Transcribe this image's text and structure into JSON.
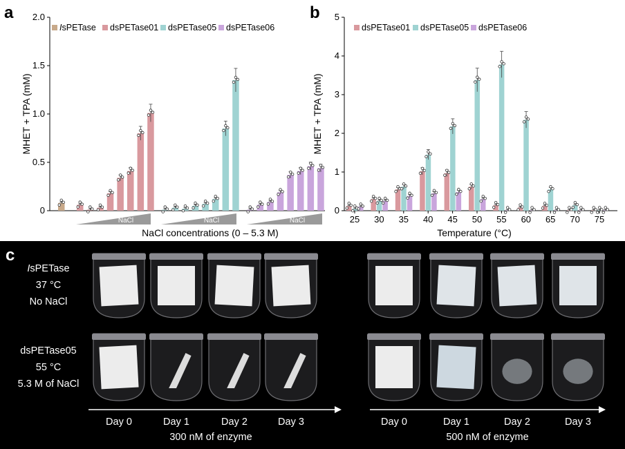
{
  "chart_data": [
    {
      "panel": "a",
      "type": "bar",
      "ylabel": "MHET + TPA (mM)",
      "xlabel": "NaCl concentrations (0 – 5.3 M)",
      "ylim": [
        0,
        2.0
      ],
      "yticks": [
        "0",
        "0.5",
        "1.0",
        "1.5",
        "2.0"
      ],
      "ytick_values": [
        0,
        0.5,
        1.0,
        1.5,
        2.0
      ],
      "legend": [
        "IsPETase",
        "dsPETase01",
        "dsPETase05",
        "dsPETase06"
      ],
      "wedge_label": "NaCl",
      "series": [
        {
          "name": "IsPETase",
          "color": "#c8a98a",
          "values": [
            0.08
          ]
        },
        {
          "name": "dsPETase01",
          "color": "#d9999e",
          "values": [
            0.06,
            0.01,
            0.03,
            0.18,
            0.34,
            0.41,
            0.8,
            1.01
          ]
        },
        {
          "name": "dsPETase05",
          "color": "#9fd3d2",
          "values": [
            0.01,
            0.03,
            0.02,
            0.05,
            0.07,
            0.12,
            0.85,
            1.35
          ]
        },
        {
          "name": "dsPETase06",
          "color": "#c9a5dc",
          "values": [
            0.01,
            0.06,
            0.09,
            0.19,
            0.37,
            0.41,
            0.46,
            0.44
          ]
        }
      ]
    },
    {
      "panel": "b",
      "type": "bar",
      "ylabel": "MHET + TPA (mM)",
      "xlabel": "Temperature (°C)",
      "ylim": [
        0,
        5
      ],
      "yticks": [
        "0",
        "1",
        "2",
        "3",
        "4",
        "5"
      ],
      "ytick_values": [
        0,
        1,
        2,
        3,
        4,
        5
      ],
      "categories": [
        "25",
        "30",
        "35",
        "40",
        "45",
        "50",
        "55",
        "60",
        "65",
        "70",
        "75"
      ],
      "legend": [
        "dsPETase01",
        "dsPETase05",
        "dsPETase06"
      ],
      "series": [
        {
          "name": "dsPETase01",
          "color": "#d9999e",
          "values": [
            0.12,
            0.3,
            0.55,
            1.02,
            0.97,
            0.62,
            0.14,
            0.08,
            0.12,
            0.01,
            0.01
          ]
        },
        {
          "name": "dsPETase05",
          "color": "#9fd3d2",
          "values": [
            0.05,
            0.25,
            0.62,
            1.45,
            2.18,
            3.38,
            3.78,
            2.35,
            0.55,
            0.14,
            0.01
          ]
        },
        {
          "name": "dsPETase06",
          "color": "#c9a5dc",
          "values": [
            0.1,
            0.25,
            0.38,
            0.45,
            0.48,
            0.3,
            0.01,
            0.01,
            0.01,
            0.01,
            0.01
          ]
        }
      ]
    }
  ],
  "labels": {
    "a": "a",
    "b": "b",
    "c": "c"
  },
  "photo": {
    "row1": [
      "IsPETase",
      "37 °C",
      "No NaCl"
    ],
    "row2": [
      "dsPETase05",
      "55 °C",
      "5.3 M of NaCl"
    ],
    "days_left": [
      "Day 0",
      "Day 1",
      "Day 2",
      "Day 3"
    ],
    "days_right": [
      "Day 0",
      "Day 1",
      "Day 2",
      "Day 3"
    ],
    "caption_left": "300 nM of enzyme",
    "caption_right": "500 nM of enzyme"
  }
}
